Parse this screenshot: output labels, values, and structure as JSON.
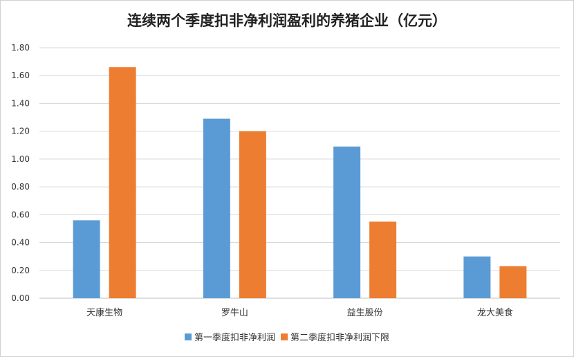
{
  "chart_data": {
    "type": "bar",
    "title": "连续两个季度扣非净利润盈利的养猪企业（亿元）",
    "categories": [
      "天康生物",
      "罗牛山",
      "益生股份",
      "龙大美食"
    ],
    "series": [
      {
        "name": "第一季度扣非净利润",
        "color": "#5b9bd5",
        "values": [
          0.56,
          1.29,
          1.09,
          0.3
        ]
      },
      {
        "name": "第二季度扣非净利润下限",
        "color": "#ed7d31",
        "values": [
          1.66,
          1.2,
          0.55,
          0.23
        ]
      }
    ],
    "ylim": [
      0,
      1.8
    ],
    "yticks": [
      "0.00",
      "0.20",
      "0.40",
      "0.60",
      "0.80",
      "1.00",
      "1.20",
      "1.40",
      "1.60",
      "1.80"
    ],
    "grid": true,
    "legend_position": "bottom"
  }
}
